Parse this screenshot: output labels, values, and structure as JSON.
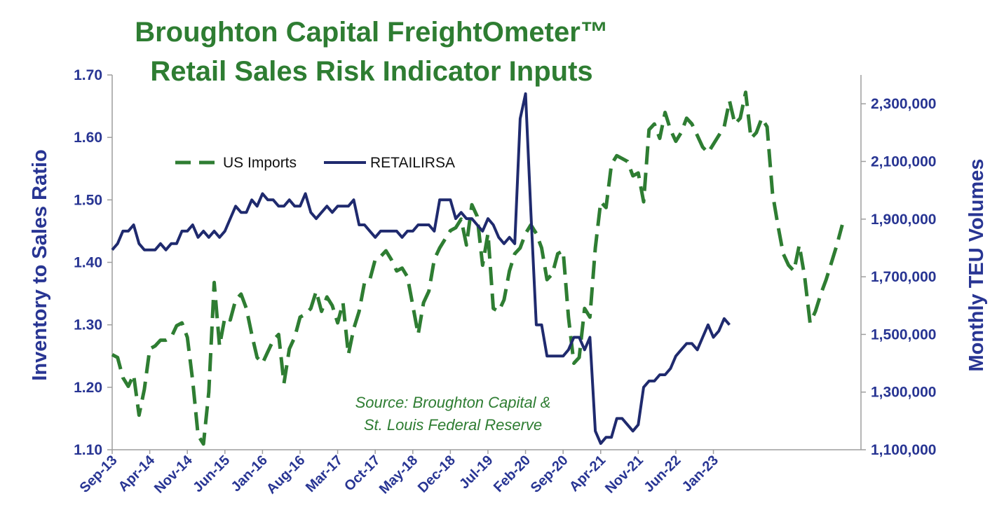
{
  "chart_data": {
    "type": "line",
    "title": "Broughton Capital FreightOmeter™",
    "subtitle": "Retail Sales Risk Indicator Inputs",
    "ylabel": "Inventory to Sales Ratio",
    "y2label": "Monthly TEU Volumes",
    "ylim": [
      1.1,
      1.7
    ],
    "y2lim": [
      1100000,
      2400000
    ],
    "yticks": [
      "1.10",
      "1.20",
      "1.30",
      "1.40",
      "1.50",
      "1.60",
      "1.70"
    ],
    "y2ticks": [
      "1,100,000",
      "1,300,000",
      "1,500,000",
      "1,700,000",
      "1,900,000",
      "2,100,000",
      "2,300,000"
    ],
    "xticks": [
      "Sep-13",
      "Apr-14",
      "Nov-14",
      "Jun-15",
      "Jan-16",
      "Aug-16",
      "Mar-17",
      "Oct-17",
      "May-18",
      "Dec-18",
      "Jul-19",
      "Feb-20",
      "Sep-20",
      "Apr-21",
      "Nov-21",
      "Jun-22",
      "Jan-23"
    ],
    "legend": {
      "position": "top-left",
      "entries": [
        "US Imports",
        "RETAILIRSA"
      ]
    },
    "source": [
      "Source: Broughton Capital &",
      "St. Louis Federal Reserve"
    ],
    "series": [
      {
        "name": "US Imports",
        "axis": "right",
        "style": "dashed",
        "color": "#2e7d32",
        "start_month": 0,
        "values": [
          1430000,
          1420000,
          1350000,
          1320000,
          1360000,
          1220000,
          1310000,
          1450000,
          1460000,
          1480000,
          1480000,
          1490000,
          1530000,
          1540000,
          1490000,
          1340000,
          1150000,
          1120000,
          1300000,
          1680000,
          1460000,
          1560000,
          1550000,
          1620000,
          1640000,
          1590000,
          1500000,
          1420000,
          1400000,
          1440000,
          1480000,
          1500000,
          1330000,
          1450000,
          1490000,
          1560000,
          1570000,
          1590000,
          1650000,
          1580000,
          1630000,
          1600000,
          1540000,
          1610000,
          1430000,
          1520000,
          1580000,
          1680000,
          1690000,
          1760000,
          1770000,
          1790000,
          1760000,
          1720000,
          1730000,
          1700000,
          1600000,
          1500000,
          1610000,
          1650000,
          1760000,
          1800000,
          1830000,
          1860000,
          1870000,
          1900000,
          1810000,
          1950000,
          1910000,
          1740000,
          1850000,
          1590000,
          1580000,
          1620000,
          1720000,
          1780000,
          1800000,
          1850000,
          1880000,
          1850000,
          1800000,
          1690000,
          1710000,
          1780000,
          1790000,
          1560000,
          1400000,
          1420000,
          1590000,
          1560000,
          1800000,
          1960000,
          1940000,
          2090000,
          2120000,
          2110000,
          2100000,
          2050000,
          2060000,
          1960000,
          2210000,
          2230000,
          2180000,
          2270000,
          2210000,
          2170000,
          2200000,
          2250000,
          2230000,
          2190000,
          2150000,
          2130000,
          2160000,
          2190000,
          2220000,
          2310000,
          2230000,
          2250000,
          2340000,
          2180000,
          2200000,
          2250000,
          2220000,
          1990000,
          1880000,
          1780000,
          1740000,
          1720000,
          1810000,
          1700000,
          1540000,
          1580000,
          1640000,
          1690000,
          1750000,
          1810000,
          1880000
        ]
      },
      {
        "name": "RETAILIRSA",
        "axis": "left",
        "style": "solid",
        "color": "#1f2a6e",
        "start_month": 0,
        "values": [
          1.42,
          1.43,
          1.45,
          1.45,
          1.46,
          1.43,
          1.42,
          1.42,
          1.42,
          1.43,
          1.42,
          1.43,
          1.43,
          1.45,
          1.45,
          1.46,
          1.44,
          1.45,
          1.44,
          1.45,
          1.44,
          1.45,
          1.47,
          1.49,
          1.48,
          1.48,
          1.5,
          1.49,
          1.51,
          1.5,
          1.5,
          1.49,
          1.49,
          1.5,
          1.49,
          1.49,
          1.51,
          1.48,
          1.47,
          1.48,
          1.49,
          1.48,
          1.49,
          1.49,
          1.49,
          1.5,
          1.46,
          1.46,
          1.45,
          1.44,
          1.45,
          1.45,
          1.45,
          1.45,
          1.44,
          1.45,
          1.45,
          1.46,
          1.46,
          1.46,
          1.45,
          1.5,
          1.5,
          1.5,
          1.47,
          1.48,
          1.47,
          1.47,
          1.46,
          1.45,
          1.47,
          1.46,
          1.44,
          1.43,
          1.44,
          1.43,
          1.63,
          1.67,
          1.48,
          1.3,
          1.3,
          1.25,
          1.25,
          1.25,
          1.25,
          1.26,
          1.28,
          1.28,
          1.26,
          1.28,
          1.13,
          1.11,
          1.12,
          1.12,
          1.15,
          1.15,
          1.14,
          1.13,
          1.14,
          1.2,
          1.21,
          1.21,
          1.22,
          1.22,
          1.23,
          1.25,
          1.26,
          1.27,
          1.27,
          1.26,
          1.28,
          1.3,
          1.28,
          1.29,
          1.31,
          1.3
        ]
      }
    ]
  }
}
